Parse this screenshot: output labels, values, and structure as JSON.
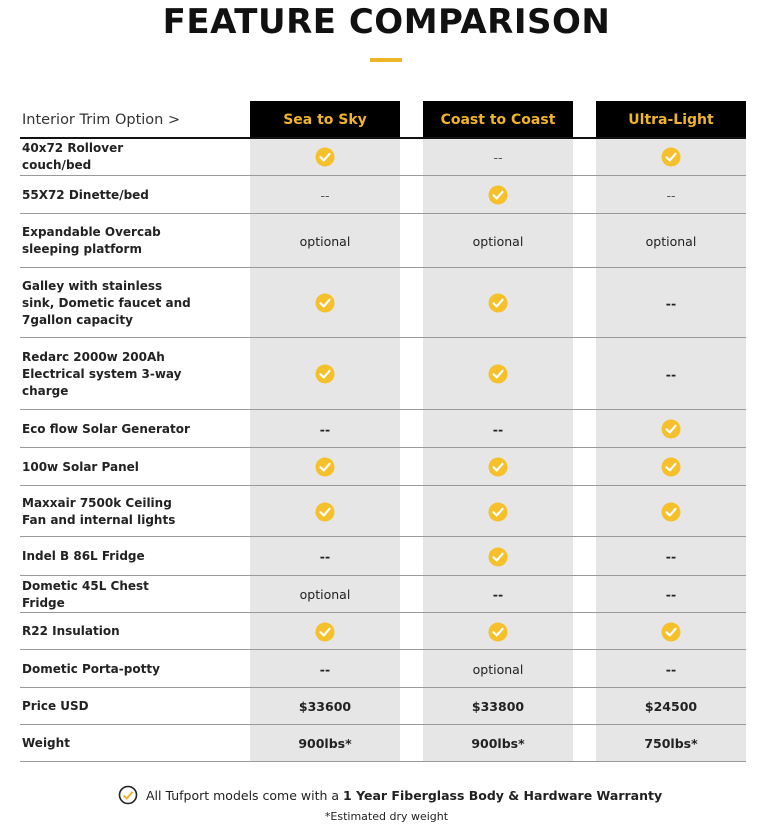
{
  "header": {
    "title": "FEATURE COMPARISON"
  },
  "table": {
    "corner": "Interior Trim Option >",
    "columns": [
      "Sea to Sky",
      "Coast to Coast",
      "Ultra-Light"
    ],
    "rows": [
      {
        "label": "40x72 Rollover couch/bed",
        "cells": [
          true,
          "--",
          true
        ]
      },
      {
        "label": "55X72 Dinette/bed",
        "cells": [
          "--",
          true,
          "--"
        ]
      },
      {
        "label": "Expandable Overcab sleeping platform",
        "cells": [
          "optional",
          "optional",
          "optional"
        ]
      },
      {
        "label": "Galley with stainless sink, Dometic faucet and 7gallon capacity",
        "cells": [
          true,
          true,
          "--"
        ]
      },
      {
        "label": "Redarc 2000w 200Ah Electrical system 3-way charge",
        "cells": [
          true,
          true,
          "--"
        ]
      },
      {
        "label": "Eco flow Solar Generator",
        "cells": [
          "--",
          "--",
          true
        ]
      },
      {
        "label": "100w Solar Panel",
        "cells": [
          true,
          true,
          true
        ]
      },
      {
        "label": "Maxxair 7500k Ceiling Fan and internal lights",
        "cells": [
          true,
          true,
          true
        ]
      },
      {
        "label": "Indel B 86L Fridge",
        "cells": [
          "--",
          true,
          "--"
        ]
      },
      {
        "label": "Dometic 45L Chest Fridge",
        "cells": [
          "optional",
          "--",
          "--"
        ]
      },
      {
        "label": "R22 Insulation",
        "cells": [
          true,
          true,
          true
        ]
      },
      {
        "label": "Dometic Porta-potty",
        "cells": [
          "--",
          "optional",
          "--"
        ]
      },
      {
        "label": "Price USD",
        "cells": [
          "$33600",
          "$33800",
          "$24500"
        ]
      },
      {
        "label": "Weight",
        "cells": [
          "900lbs*",
          "900lbs*",
          "750lbs*"
        ]
      }
    ]
  },
  "footer": {
    "note_prefix": "All Tufport models come with a",
    "note_bold": "1 Year Fiberglass Body & Hardware Warranty",
    "footnote": "*Estimated dry weight"
  }
}
